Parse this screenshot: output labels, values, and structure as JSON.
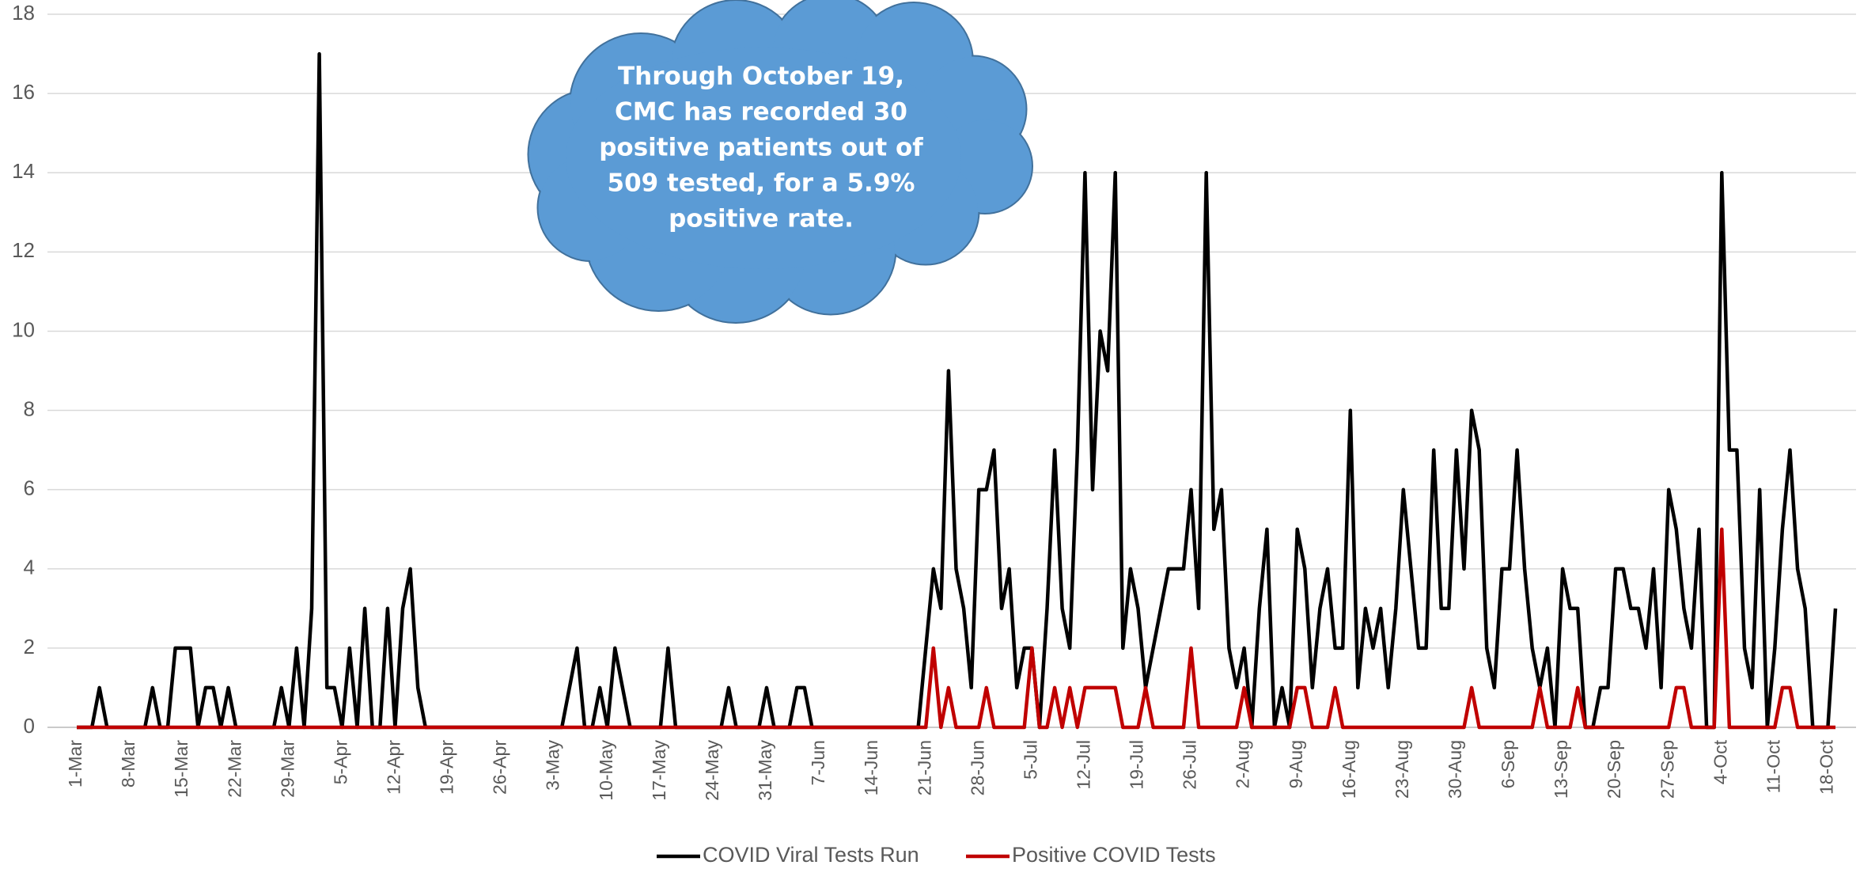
{
  "chart_data": {
    "type": "line",
    "annotation": [
      "Through October 19,",
      "CMC has recorded 30",
      "positive patients out of",
      "509 tested, for a 5.9%",
      "positive rate."
    ],
    "categories": [
      "1-Mar",
      null,
      null,
      null,
      null,
      null,
      null,
      "8-Mar",
      null,
      null,
      null,
      null,
      null,
      null,
      "15-Mar",
      null,
      null,
      null,
      null,
      null,
      null,
      "22-Mar",
      null,
      null,
      null,
      null,
      null,
      null,
      "29-Mar",
      null,
      null,
      null,
      null,
      null,
      null,
      "5-Apr",
      null,
      null,
      null,
      null,
      null,
      null,
      "12-Apr",
      null,
      null,
      null,
      null,
      null,
      null,
      "19-Apr",
      null,
      null,
      null,
      null,
      null,
      null,
      "26-Apr",
      null,
      null,
      null,
      null,
      null,
      null,
      "3-May",
      null,
      null,
      null,
      null,
      null,
      null,
      "10-May",
      null,
      null,
      null,
      null,
      null,
      null,
      "17-May",
      null,
      null,
      null,
      null,
      null,
      null,
      "24-May",
      null,
      null,
      null,
      null,
      null,
      null,
      "31-May",
      null,
      null,
      null,
      null,
      null,
      null,
      "7-Jun",
      null,
      null,
      null,
      null,
      null,
      null,
      "14-Jun",
      null,
      null,
      null,
      null,
      null,
      null,
      "21-Jun",
      null,
      null,
      null,
      null,
      null,
      null,
      "28-Jun",
      null,
      null,
      null,
      null,
      null,
      null,
      "5-Jul",
      null,
      null,
      null,
      null,
      null,
      null,
      "12-Jul",
      null,
      null,
      null,
      null,
      null,
      null,
      "19-Jul",
      null,
      null,
      null,
      null,
      null,
      null,
      "26-Jul",
      null,
      null,
      null,
      null,
      null,
      null,
      "2-Aug",
      null,
      null,
      null,
      null,
      null,
      null,
      "9-Aug",
      null,
      null,
      null,
      null,
      null,
      null,
      "16-Aug",
      null,
      null,
      null,
      null,
      null,
      null,
      "23-Aug",
      null,
      null,
      null,
      null,
      null,
      null,
      "30-Aug",
      null,
      null,
      null,
      null,
      null,
      null,
      "6-Sep",
      null,
      null,
      null,
      null,
      null,
      null,
      "13-Sep",
      null,
      null,
      null,
      null,
      null,
      null,
      "20-Sep",
      null,
      null,
      null,
      null,
      null,
      null,
      "27-Sep",
      null,
      null,
      null,
      null,
      null,
      null,
      "4-Oct",
      null,
      null,
      null,
      null,
      null,
      null,
      "11-Oct",
      null,
      null,
      null,
      null,
      null,
      null,
      "18-Oct",
      null
    ],
    "series": [
      {
        "name": "COVID Viral Tests Run",
        "color": "#000000",
        "values": [
          0,
          0,
          0,
          1,
          0,
          0,
          0,
          0,
          0,
          0,
          1,
          0,
          0,
          2,
          2,
          2,
          0,
          1,
          1,
          0,
          1,
          0,
          0,
          0,
          0,
          0,
          0,
          1,
          0,
          2,
          0,
          3,
          17,
          1,
          1,
          0,
          2,
          0,
          3,
          0,
          0,
          3,
          0,
          3,
          4,
          1,
          0,
          0,
          0,
          0,
          0,
          0,
          0,
          0,
          0,
          0,
          0,
          0,
          0,
          0,
          0,
          0,
          0,
          0,
          0,
          1,
          2,
          0,
          0,
          1,
          0,
          2,
          1,
          0,
          0,
          0,
          0,
          0,
          2,
          0,
          0,
          0,
          0,
          0,
          0,
          0,
          1,
          0,
          0,
          0,
          0,
          1,
          0,
          0,
          0,
          1,
          1,
          0,
          0,
          0,
          0,
          0,
          0,
          0,
          0,
          0,
          0,
          0,
          0,
          0,
          0,
          0,
          2,
          4,
          3,
          9,
          4,
          3,
          1,
          6,
          6,
          7,
          3,
          4,
          1,
          2,
          2,
          0,
          3,
          7,
          3,
          2,
          7,
          14,
          6,
          10,
          9,
          14,
          2,
          4,
          3,
          1,
          2,
          3,
          4,
          4,
          4,
          6,
          3,
          14,
          5,
          6,
          2,
          1,
          2,
          0,
          3,
          5,
          0,
          1,
          0,
          5,
          4,
          1,
          3,
          4,
          2,
          2,
          8,
          1,
          3,
          2,
          3,
          1,
          3,
          6,
          4,
          2,
          2,
          7,
          3,
          3,
          7,
          4,
          8,
          7,
          2,
          1,
          4,
          4,
          7,
          4,
          2,
          1,
          2,
          0,
          4,
          3,
          3,
          0,
          0,
          1,
          1,
          4,
          4,
          3,
          3,
          2,
          4,
          1,
          6,
          5,
          3,
          2,
          5,
          0,
          0,
          14,
          7,
          7,
          2,
          1,
          6,
          0,
          2,
          5,
          7,
          4,
          3,
          0,
          0,
          0,
          3
        ]
      },
      {
        "name": "Positive COVID Tests",
        "color": "#c00000",
        "values": [
          0,
          0,
          0,
          0,
          0,
          0,
          0,
          0,
          0,
          0,
          0,
          0,
          0,
          0,
          0,
          0,
          0,
          0,
          0,
          0,
          0,
          0,
          0,
          0,
          0,
          0,
          0,
          0,
          0,
          0,
          0,
          0,
          0,
          0,
          0,
          0,
          0,
          0,
          0,
          0,
          0,
          0,
          0,
          0,
          0,
          0,
          0,
          0,
          0,
          0,
          0,
          0,
          0,
          0,
          0,
          0,
          0,
          0,
          0,
          0,
          0,
          0,
          0,
          0,
          0,
          0,
          0,
          0,
          0,
          0,
          0,
          0,
          0,
          0,
          0,
          0,
          0,
          0,
          0,
          0,
          0,
          0,
          0,
          0,
          0,
          0,
          0,
          0,
          0,
          0,
          0,
          0,
          0,
          0,
          0,
          0,
          0,
          0,
          0,
          0,
          0,
          0,
          0,
          0,
          0,
          0,
          0,
          0,
          0,
          0,
          0,
          0,
          0,
          2,
          0,
          1,
          0,
          0,
          0,
          0,
          1,
          0,
          0,
          0,
          0,
          0,
          2,
          0,
          0,
          1,
          0,
          1,
          0,
          1,
          1,
          1,
          1,
          1,
          0,
          0,
          0,
          1,
          0,
          0,
          0,
          0,
          0,
          2,
          0,
          0,
          0,
          0,
          0,
          0,
          1,
          0,
          0,
          0,
          0,
          0,
          0,
          1,
          1,
          0,
          0,
          0,
          1,
          0,
          0,
          0,
          0,
          0,
          0,
          0,
          0,
          0,
          0,
          0,
          0,
          0,
          0,
          0,
          0,
          0,
          1,
          0,
          0,
          0,
          0,
          0,
          0,
          0,
          0,
          1,
          0,
          0,
          0,
          0,
          1,
          0,
          0,
          0,
          0,
          0,
          0,
          0,
          0,
          0,
          0,
          0,
          0,
          1,
          1,
          0,
          0,
          0,
          0,
          5,
          0,
          0,
          0,
          0,
          0,
          0,
          0,
          1,
          1,
          0,
          0,
          0,
          0,
          0,
          0
        ]
      }
    ],
    "ylim": [
      0,
      18
    ],
    "yticks": [
      0,
      2,
      4,
      6,
      8,
      10,
      12,
      14,
      16,
      18
    ],
    "grid": true,
    "legend": "bottom"
  }
}
